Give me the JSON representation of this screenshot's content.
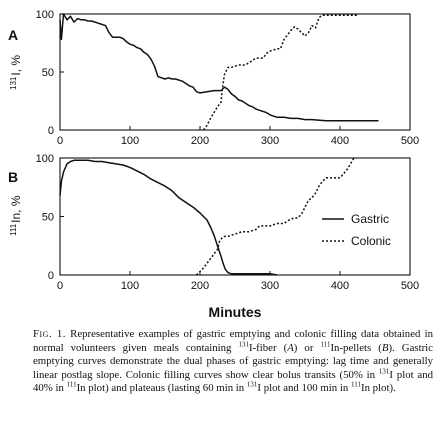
{
  "chart_data": [
    {
      "type": "line",
      "panel": "A",
      "ylabel_sup": "131",
      "ylabel_main": "I, %",
      "x_ticks": [
        "0",
        "100",
        "200",
        "300",
        "400",
        "500"
      ],
      "y_ticks": [
        "0",
        "50",
        "100"
      ],
      "xlim": [
        0,
        500
      ],
      "ylim": [
        0,
        100
      ],
      "series": [
        {
          "style": "solid",
          "points": [
            [
              0,
              95
            ],
            [
              2,
              78
            ],
            [
              5,
              100
            ],
            [
              10,
              95
            ],
            [
              15,
              98
            ],
            [
              20,
              93
            ],
            [
              25,
              96
            ],
            [
              30,
              95
            ],
            [
              35,
              95
            ],
            [
              40,
              94
            ],
            [
              45,
              94
            ],
            [
              50,
              93
            ],
            [
              55,
              92
            ],
            [
              60,
              91
            ],
            [
              65,
              90
            ],
            [
              70,
              84
            ],
            [
              75,
              80
            ],
            [
              80,
              80
            ],
            [
              85,
              80
            ],
            [
              90,
              79
            ],
            [
              95,
              76
            ],
            [
              100,
              74
            ],
            [
              105,
              73
            ],
            [
              110,
              71
            ],
            [
              115,
              70
            ],
            [
              120,
              67
            ],
            [
              125,
              65
            ],
            [
              130,
              61
            ],
            [
              135,
              55
            ],
            [
              140,
              46
            ],
            [
              145,
              45
            ],
            [
              150,
              44
            ],
            [
              155,
              45
            ],
            [
              160,
              44
            ],
            [
              165,
              44
            ],
            [
              170,
              43
            ],
            [
              175,
              42
            ],
            [
              180,
              40
            ],
            [
              185,
              38
            ],
            [
              190,
              37
            ],
            [
              195,
              33
            ],
            [
              200,
              32
            ],
            [
              210,
              33
            ],
            [
              220,
              34
            ],
            [
              230,
              34
            ],
            [
              235,
              37
            ],
            [
              240,
              35
            ],
            [
              245,
              31
            ],
            [
              250,
              29
            ],
            [
              255,
              26
            ],
            [
              260,
              25
            ],
            [
              265,
              23
            ],
            [
              270,
              21
            ],
            [
              275,
              20
            ],
            [
              280,
              18
            ],
            [
              285,
              17
            ],
            [
              290,
              16
            ],
            [
              295,
              15
            ],
            [
              300,
              13
            ],
            [
              305,
              12
            ],
            [
              310,
              11
            ],
            [
              320,
              11
            ],
            [
              330,
              10
            ],
            [
              340,
              10
            ],
            [
              350,
              9
            ],
            [
              360,
              9
            ],
            [
              380,
              8
            ],
            [
              400,
              8
            ],
            [
              420,
              8
            ],
            [
              440,
              8
            ],
            [
              455,
              8
            ]
          ]
        },
        {
          "style": "dotted",
          "points": [
            [
              205,
              0
            ],
            [
              210,
              4
            ],
            [
              215,
              10
            ],
            [
              220,
              15
            ],
            [
              225,
              20
            ],
            [
              230,
              24
            ],
            [
              232,
              36
            ],
            [
              235,
              48
            ],
            [
              240,
              54
            ],
            [
              245,
              54
            ],
            [
              250,
              55
            ],
            [
              255,
              56
            ],
            [
              260,
              56
            ],
            [
              265,
              56
            ],
            [
              270,
              58
            ],
            [
              275,
              60
            ],
            [
              280,
              62
            ],
            [
              285,
              62
            ],
            [
              290,
              62
            ],
            [
              295,
              66
            ],
            [
              300,
              68
            ],
            [
              305,
              69
            ],
            [
              310,
              70
            ],
            [
              315,
              70
            ],
            [
              320,
              78
            ],
            [
              325,
              82
            ],
            [
              330,
              86
            ],
            [
              335,
              89
            ],
            [
              340,
              87
            ],
            [
              345,
              84
            ],
            [
              350,
              81
            ],
            [
              355,
              84
            ],
            [
              360,
              90
            ],
            [
              365,
              88
            ],
            [
              370,
              97
            ],
            [
              375,
              99
            ],
            [
              380,
              99
            ],
            [
              390,
              99
            ],
            [
              400,
              99
            ],
            [
              410,
              99
            ],
            [
              420,
              99
            ],
            [
              425,
              99
            ]
          ]
        }
      ]
    },
    {
      "type": "line",
      "panel": "B",
      "ylabel_sup": "111",
      "ylabel_main": "In, %",
      "x_ticks": [
        "0",
        "100",
        "200",
        "300",
        "400",
        "500"
      ],
      "y_ticks": [
        "0",
        "50",
        "100"
      ],
      "xlim": [
        0,
        500
      ],
      "ylim": [
        0,
        100
      ],
      "xlabel": "Minutes",
      "series": [
        {
          "name": "Gastric",
          "style": "solid",
          "points": [
            [
              0,
              68
            ],
            [
              2,
              80
            ],
            [
              5,
              88
            ],
            [
              10,
              95
            ],
            [
              15,
              97
            ],
            [
              20,
              98
            ],
            [
              30,
              98
            ],
            [
              40,
              98
            ],
            [
              50,
              97
            ],
            [
              60,
              97
            ],
            [
              70,
              96
            ],
            [
              80,
              95
            ],
            [
              90,
              94
            ],
            [
              100,
              92
            ],
            [
              110,
              89
            ],
            [
              120,
              86
            ],
            [
              130,
              82
            ],
            [
              140,
              79
            ],
            [
              150,
              76
            ],
            [
              160,
              72
            ],
            [
              170,
              66
            ],
            [
              180,
              62
            ],
            [
              190,
              58
            ],
            [
              200,
              53
            ],
            [
              205,
              50
            ],
            [
              210,
              47
            ],
            [
              215,
              41
            ],
            [
              220,
              34
            ],
            [
              225,
              25
            ],
            [
              230,
              16
            ],
            [
              233,
              10
            ],
            [
              236,
              5
            ],
            [
              240,
              2
            ],
            [
              245,
              1
            ],
            [
              260,
              1
            ],
            [
              280,
              1
            ],
            [
              300,
              1
            ],
            [
              310,
              0
            ]
          ]
        },
        {
          "name": "Colonic",
          "style": "dotted",
          "points": [
            [
              195,
              0
            ],
            [
              200,
              3
            ],
            [
              205,
              6
            ],
            [
              210,
              10
            ],
            [
              215,
              14
            ],
            [
              220,
              18
            ],
            [
              225,
              22
            ],
            [
              228,
              29
            ],
            [
              232,
              32
            ],
            [
              235,
              33
            ],
            [
              240,
              33
            ],
            [
              245,
              34
            ],
            [
              250,
              35
            ],
            [
              260,
              37
            ],
            [
              270,
              37
            ],
            [
              280,
              39
            ],
            [
              285,
              42
            ],
            [
              290,
              42
            ],
            [
              300,
              42
            ],
            [
              310,
              44
            ],
            [
              320,
              44
            ],
            [
              330,
              48
            ],
            [
              340,
              49
            ],
            [
              345,
              52
            ],
            [
              350,
              58
            ],
            [
              355,
              64
            ],
            [
              360,
              66
            ],
            [
              365,
              70
            ],
            [
              370,
              76
            ],
            [
              375,
              80
            ],
            [
              380,
              83
            ],
            [
              390,
              83
            ],
            [
              400,
              83
            ],
            [
              410,
              90
            ],
            [
              420,
              100
            ]
          ]
        }
      ]
    }
  ],
  "legend": {
    "gastric_label": "Gastric",
    "colonic_label": "Colonic"
  },
  "caption": {
    "fig_label": "Fig. 1.",
    "p1": " Representative examples of gastric emptying and colonic filling data obtained in normal volunteers given meals containing ",
    "sup1": "131",
    "p2": "I-fiber (",
    "italic_a": "A",
    "p3": ") or ",
    "sup2": "111",
    "p4": "In-pellets (",
    "italic_b": "B",
    "p5": "). Gastric emptying curves demonstrate the dual phases of gastric emptying: lag time and generally linear postlag slope. Colonic filling curves show clear bolus transits (50% in ",
    "sup3": "131",
    "p6": "I plot and 40% in ",
    "sup4": "111",
    "p7": "In plot) and plateaus (lasting 60 min in ",
    "sup5": "131",
    "p8": "I plot and 100 min in ",
    "sup6": "111",
    "p9": "In plot)."
  }
}
